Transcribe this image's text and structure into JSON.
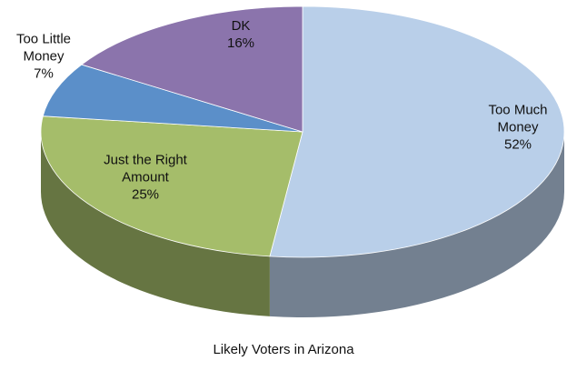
{
  "chart_data": {
    "type": "pie",
    "title": "Likely Voters in Arizona",
    "categories": [
      "Too Much Money",
      "Just the Right Amount",
      "Too Little Money",
      "DK"
    ],
    "values": [
      52,
      25,
      7,
      16
    ],
    "value_labels": [
      "52%",
      "25%",
      "7%",
      "16%"
    ],
    "colors": [
      "#b9cfe9",
      "#a5bd6a",
      "#5b8fc9",
      "#8b74ac"
    ]
  }
}
